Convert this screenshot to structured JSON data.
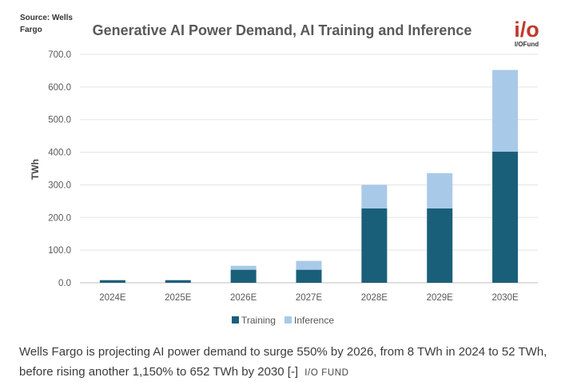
{
  "source_note": {
    "line1": "Source: Wells",
    "line2": "Fargo"
  },
  "logo": {
    "mark": "i/o",
    "text": "I/OFund",
    "color": "#c0392b"
  },
  "chart_data": {
    "type": "bar",
    "stacked": true,
    "title": "Generative AI Power Demand, AI Training and Inference",
    "xlabel": "",
    "ylabel": "TWh",
    "categories": [
      "2024E",
      "2025E",
      "2026E",
      "2027E",
      "2028E",
      "2029E",
      "2030E"
    ],
    "series": [
      {
        "name": "Training",
        "color": "#1a5f7a",
        "values": [
          8,
          8,
          40,
          40,
          228,
          228,
          402
        ]
      },
      {
        "name": "Inference",
        "color": "#a9c9e8",
        "values": [
          0,
          0,
          12,
          27,
          72,
          108,
          250
        ]
      }
    ],
    "ylim": [
      0,
      700
    ],
    "yticks": [
      "0.0",
      "100.0",
      "200.0",
      "300.0",
      "400.0",
      "500.0",
      "600.0",
      "700.0"
    ],
    "grid": true,
    "legend_position": "bottom"
  },
  "caption": {
    "text": "Wells Fargo is projecting AI power demand to surge 550% by 2026, from 8 TWh in 2024 to 52 TWh, before rising another 1,150% to 652 TWh by 2030 [-]",
    "tag": "I/O FUND"
  }
}
